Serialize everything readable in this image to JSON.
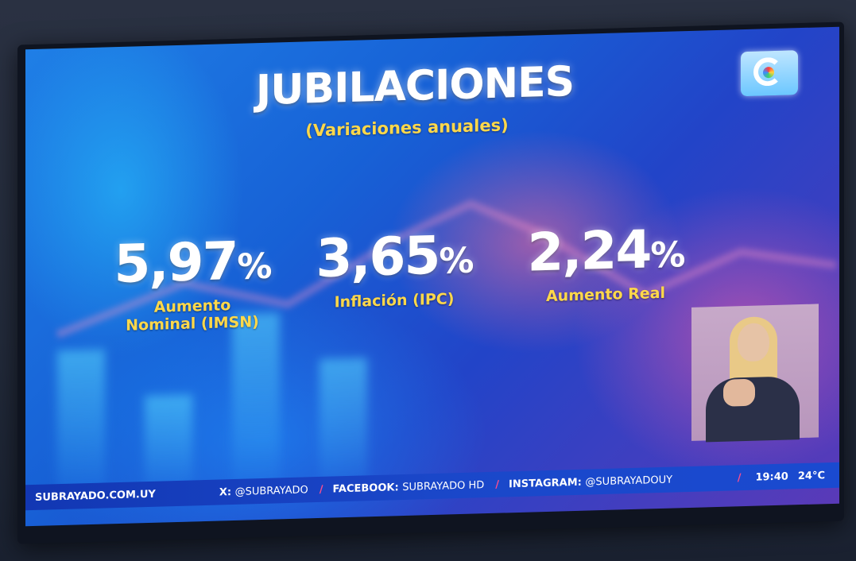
{
  "graphic": {
    "title": "JUBILACIONES",
    "subtitle": "(Variaciones anuales)",
    "stats": [
      {
        "value": "5,97",
        "unit": "%",
        "label_line1": "Aumento",
        "label_line2": "Nominal (IMSN)"
      },
      {
        "value": "3,65",
        "unit": "%",
        "label_line1": "Inflación (IPC)",
        "label_line2": ""
      },
      {
        "value": "2,24",
        "unit": "%",
        "label_line1": "Aumento Real",
        "label_line2": ""
      }
    ]
  },
  "ticker": {
    "site": "SUBRAYADO.COM.UY",
    "x_label": "X:",
    "x_handle": "@SUBRAYADO",
    "facebook_label": "FACEBOOK:",
    "facebook_handle": "SUBRAYADO HD",
    "instagram_label": "INSTAGRAM:",
    "instagram_handle": "@SUBRAYADOUY",
    "separator": "/",
    "time": "19:40",
    "temperature": "24°C"
  },
  "colors": {
    "accent_yellow": "#ffd84a",
    "title_white": "#ffffff",
    "separator_pink": "#ff4d8d"
  },
  "icons": {
    "channel_logo": "channel-logo-icon",
    "sign_language_interpreter": "interpreter-video"
  }
}
